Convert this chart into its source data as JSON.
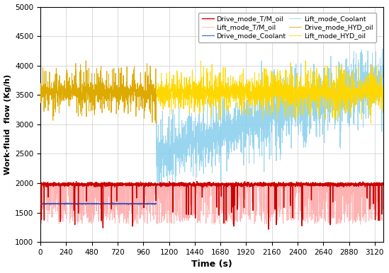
{
  "xlabel": "Time (s)",
  "ylabel": "Work-fluid  flow (Kg/h)",
  "xlim": [
    0,
    3200
  ],
  "ylim": [
    1000,
    5000
  ],
  "xticks": [
    0,
    240,
    480,
    720,
    960,
    1200,
    1440,
    1680,
    1920,
    2160,
    2400,
    2640,
    2880,
    3120
  ],
  "yticks": [
    1000,
    1500,
    2000,
    2500,
    3000,
    3500,
    4000,
    4500,
    5000
  ],
  "drive_end": 1080,
  "total_time": 3200,
  "dt": 1,
  "drive_TM_base": 1980,
  "drive_TM_noise": 15,
  "drive_TM_spike_noise": 350,
  "lift_TM_base": 1960,
  "lift_TM_noise": 15,
  "lift_TM_spike_noise": 300,
  "tm_full_lower": 1300,
  "tm_full_upper": 2000,
  "drive_coolant_base": 1650,
  "drive_coolant_step": 1680,
  "drive_coolant_step_time": 1100,
  "lift_coolant_base": 2500,
  "lift_coolant_top": 3750,
  "lift_coolant_noise": 150,
  "hyd_base": 3550,
  "hyd_noise": 250,
  "hyd_spike": 400,
  "legend": [
    {
      "label": "Drive_mode_T/M_oil",
      "color": "#cc0000",
      "lw": 1.0
    },
    {
      "label": "Lift_mode_T/M_oil",
      "color": "#ffaaaa",
      "lw": 0.6
    },
    {
      "label": "Drive_mode_Coolant",
      "color": "#3050c0",
      "lw": 0.8
    },
    {
      "label": "Lift_mode_Coolant",
      "color": "#87ceeb",
      "lw": 0.6
    },
    {
      "label": "Drive_mode_HYD_oil",
      "color": "#ddaa00",
      "lw": 0.6
    },
    {
      "label": "Lift_mode_HYD_oil",
      "color": "#ffd700",
      "lw": 0.6
    }
  ],
  "figsize": [
    5.49,
    3.86
  ],
  "dpi": 100,
  "background_color": "#ffffff",
  "grid_color": "#cccccc"
}
